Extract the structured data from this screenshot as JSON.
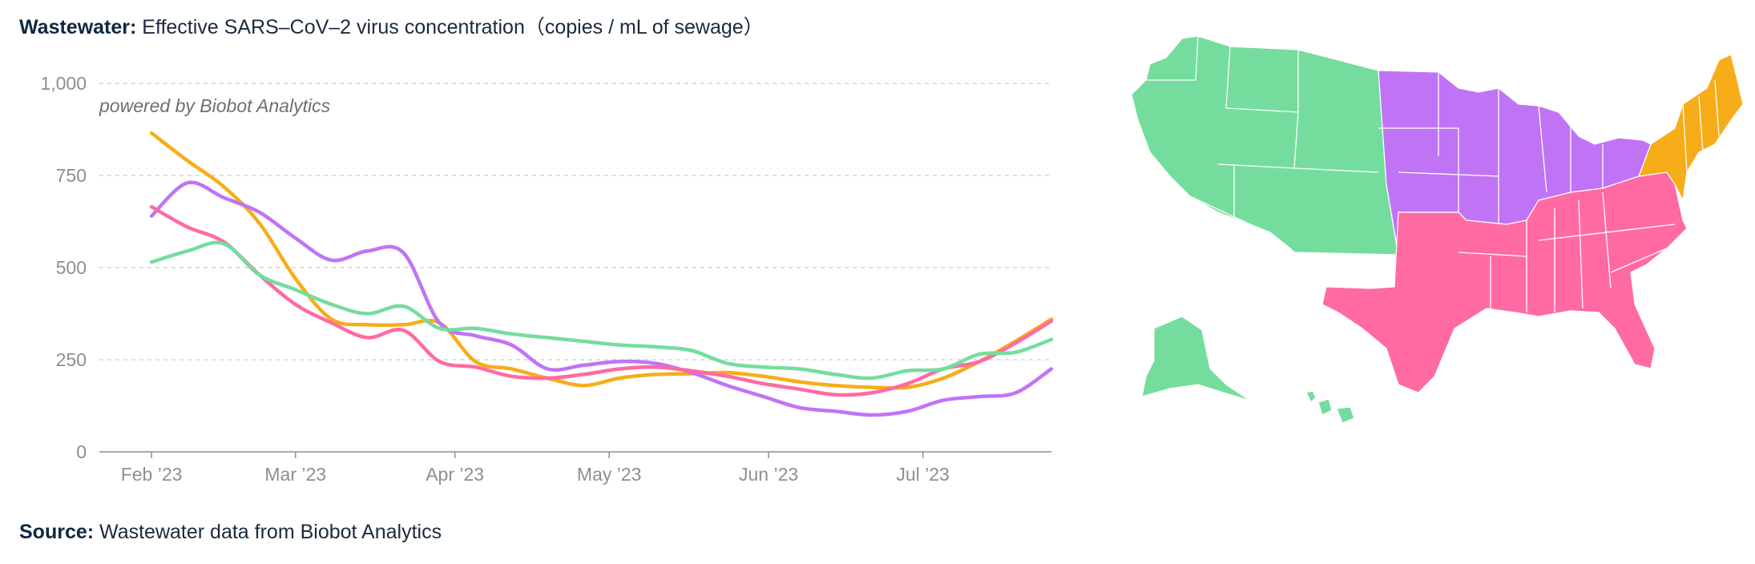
{
  "header": {
    "title_bold": "Wastewater:",
    "title_rest": " Effective SARS–CoV–2 virus concentration（copies / mL of sewage）"
  },
  "footer": {
    "source_bold": "Source:",
    "source_rest": " Wastewater data from Biobot Analytics"
  },
  "chart_data": {
    "type": "line",
    "watermark": "powered by Biobot Analytics",
    "y_ticks": [
      "0",
      "250",
      "500",
      "750",
      "1,000"
    ],
    "y_tick_values": [
      0,
      250,
      500,
      750,
      1000
    ],
    "ylim": [
      0,
      1000
    ],
    "x_ticks": [
      "Feb ’23",
      "Mar ’23",
      "Apr ’23",
      "May ’23",
      "Jun ’23",
      "Jul ’23"
    ],
    "x_tick_days": [
      0,
      28,
      59,
      89,
      120,
      150
    ],
    "xlim_days": [
      -5,
      175
    ],
    "grid": true,
    "x": [
      0,
      7,
      14,
      21,
      28,
      35,
      42,
      49,
      56,
      63,
      70,
      77,
      84,
      91,
      98,
      105,
      112,
      119,
      126,
      133,
      140,
      147,
      154,
      161,
      168,
      175
    ],
    "series": [
      {
        "color": "#f7ad19",
        "values": [
          865,
          790,
          720,
          620,
          470,
          360,
          345,
          345,
          350,
          245,
          225,
          200,
          180,
          200,
          210,
          212,
          215,
          205,
          190,
          180,
          175,
          175,
          200,
          245,
          300,
          360
        ]
      },
      {
        "color": "#c074f5",
        "values": [
          640,
          730,
          690,
          650,
          580,
          520,
          545,
          540,
          350,
          315,
          290,
          225,
          235,
          245,
          240,
          215,
          180,
          150,
          120,
          110,
          100,
          110,
          140,
          150,
          160,
          225
        ]
      },
      {
        "color": "#ff6aa3",
        "values": [
          665,
          610,
          570,
          480,
          400,
          350,
          310,
          330,
          245,
          230,
          205,
          200,
          210,
          225,
          230,
          220,
          205,
          185,
          170,
          155,
          160,
          185,
          225,
          245,
          295,
          355
        ]
      },
      {
        "color": "#74dd9d",
        "values": [
          515,
          545,
          565,
          480,
          440,
          400,
          375,
          395,
          335,
          335,
          320,
          310,
          300,
          290,
          285,
          275,
          240,
          230,
          225,
          210,
          200,
          220,
          225,
          265,
          270,
          305
        ]
      }
    ]
  },
  "map": {
    "regions": [
      {
        "color": "#74dd9d"
      },
      {
        "color": "#c074f5"
      },
      {
        "color": "#ff6aa3"
      },
      {
        "color": "#f7ad19"
      }
    ]
  }
}
